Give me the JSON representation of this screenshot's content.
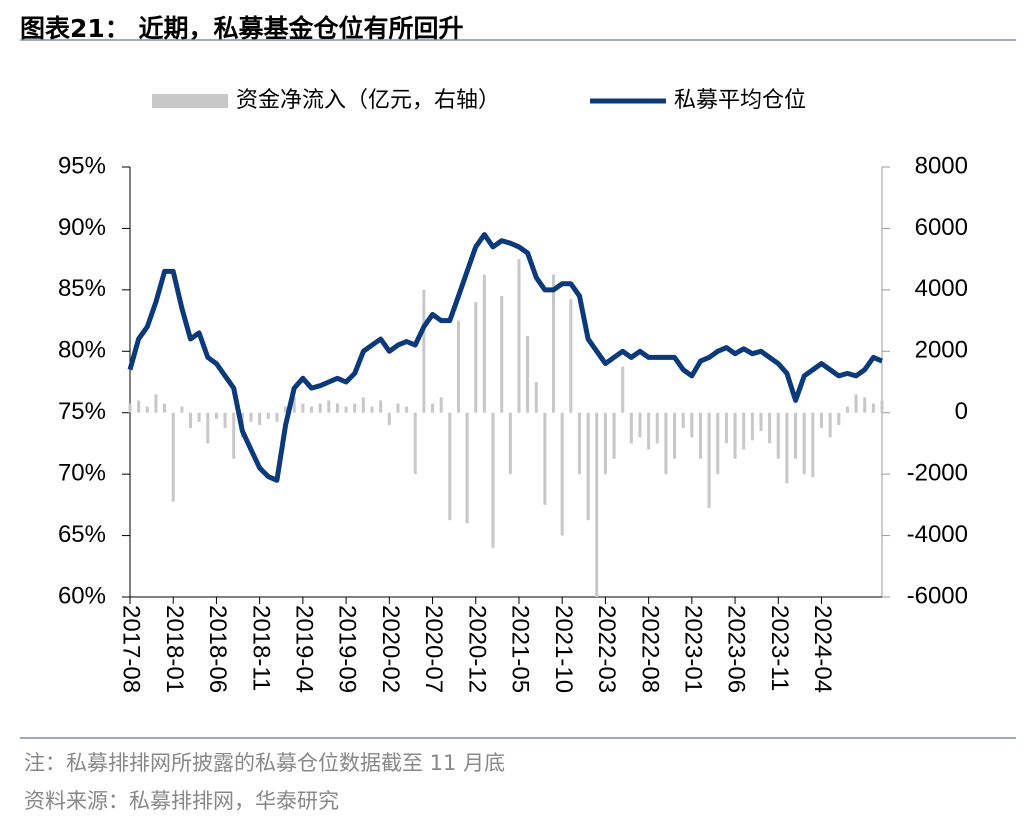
{
  "header": {
    "title": "图表21：  近期，私募基金仓位有所回升"
  },
  "chart_data": {
    "type": "combo",
    "categories": [
      "2017-08",
      null,
      null,
      null,
      null,
      "2018-01",
      null,
      null,
      null,
      null,
      "2018-06",
      null,
      null,
      null,
      null,
      "2018-11",
      null,
      null,
      null,
      null,
      "2019-04",
      null,
      null,
      null,
      null,
      "2019-09",
      null,
      null,
      null,
      null,
      "2020-02",
      null,
      null,
      null,
      null,
      "2020-07",
      null,
      null,
      null,
      null,
      "2020-12",
      null,
      null,
      null,
      null,
      "2021-05",
      null,
      null,
      null,
      null,
      "2021-10",
      null,
      null,
      null,
      null,
      "2022-03",
      null,
      null,
      null,
      null,
      "2022-08",
      null,
      null,
      null,
      null,
      "2023-01",
      null,
      null,
      null,
      null,
      "2023-06",
      null,
      null,
      null,
      null,
      "2023-11",
      null,
      null,
      null,
      null,
      "2024-04",
      null,
      null,
      null,
      null,
      null,
      null,
      null
    ],
    "series": [
      {
        "name": "资金净流入（亿元，右轴）",
        "type": "bar",
        "axis": "y2",
        "color": "#c8c8c8",
        "values": [
          300,
          400,
          200,
          600,
          300,
          -2900,
          200,
          -500,
          -300,
          -1000,
          -200,
          -500,
          -1500,
          -800,
          -300,
          -400,
          -200,
          -300,
          200,
          500,
          300,
          200,
          300,
          400,
          300,
          200,
          300,
          500,
          200,
          400,
          -400,
          300,
          200,
          -2000,
          4000,
          300,
          500,
          -3500,
          3000,
          -3600,
          3600,
          4500,
          -4400,
          3800,
          -2000,
          5000,
          2500,
          1000,
          -3000,
          4500,
          -4000,
          3700,
          -2000,
          -3500,
          -6000,
          -2000,
          -1500,
          1500,
          -1000,
          -800,
          -1200,
          -1000,
          -2000,
          -1500,
          -500,
          -800,
          -1500,
          -3100,
          -2000,
          -1000,
          -1500,
          -1200,
          -900,
          -600,
          -1000,
          -1500,
          -2300,
          -1500,
          -2000,
          -2100,
          -500,
          -800,
          -400,
          200,
          600,
          500,
          300,
          400
        ]
      },
      {
        "name": "私募平均仓位",
        "type": "line",
        "axis": "y",
        "color": "#0b3a7a",
        "values": [
          78.5,
          81,
          82,
          84,
          86.5,
          86.5,
          83.5,
          81,
          81.5,
          79.5,
          79,
          78,
          77,
          73.5,
          72,
          70.5,
          69.8,
          69.5,
          74,
          77,
          77.8,
          77,
          77.2,
          77.5,
          77.8,
          77.5,
          78.2,
          80,
          80.5,
          81,
          80,
          80.5,
          80.8,
          80.5,
          82,
          83,
          82.5,
          82.5,
          84.5,
          86.5,
          88.5,
          89.5,
          88.5,
          89,
          88.8,
          88.5,
          88,
          86,
          85,
          85,
          85.5,
          85.5,
          84.5,
          81,
          80,
          79,
          79.5,
          80,
          79.5,
          80,
          79.5,
          79.5,
          79.5,
          79.5,
          78.5,
          78,
          79.2,
          79.5,
          80,
          80.3,
          79.8,
          80.2,
          79.8,
          80,
          79.5,
          79,
          78.2,
          76,
          78,
          78.5,
          79,
          78.5,
          78,
          78.2,
          78,
          78.5,
          79.5,
          79.2
        ]
      }
    ],
    "ylim": [
      60,
      95
    ],
    "yticks": [
      {
        "value": 60,
        "label": "60%"
      },
      {
        "value": 65,
        "label": "65%"
      },
      {
        "value": 70,
        "label": "70%"
      },
      {
        "value": 75,
        "label": "75%"
      },
      {
        "value": 80,
        "label": "80%"
      },
      {
        "value": 85,
        "label": "85%"
      },
      {
        "value": 90,
        "label": "90%"
      },
      {
        "value": 95,
        "label": "95%"
      }
    ],
    "y2lim": [
      -6000,
      8000
    ],
    "y2ticks": [
      -6000,
      -4000,
      -2000,
      0,
      2000,
      4000,
      6000,
      8000
    ],
    "legend": "top"
  },
  "footer": {
    "note": "注：私募排排网所披露的私募仓位数据截至 11 月底",
    "source": "资料来源：私募排排网，华泰研究"
  }
}
